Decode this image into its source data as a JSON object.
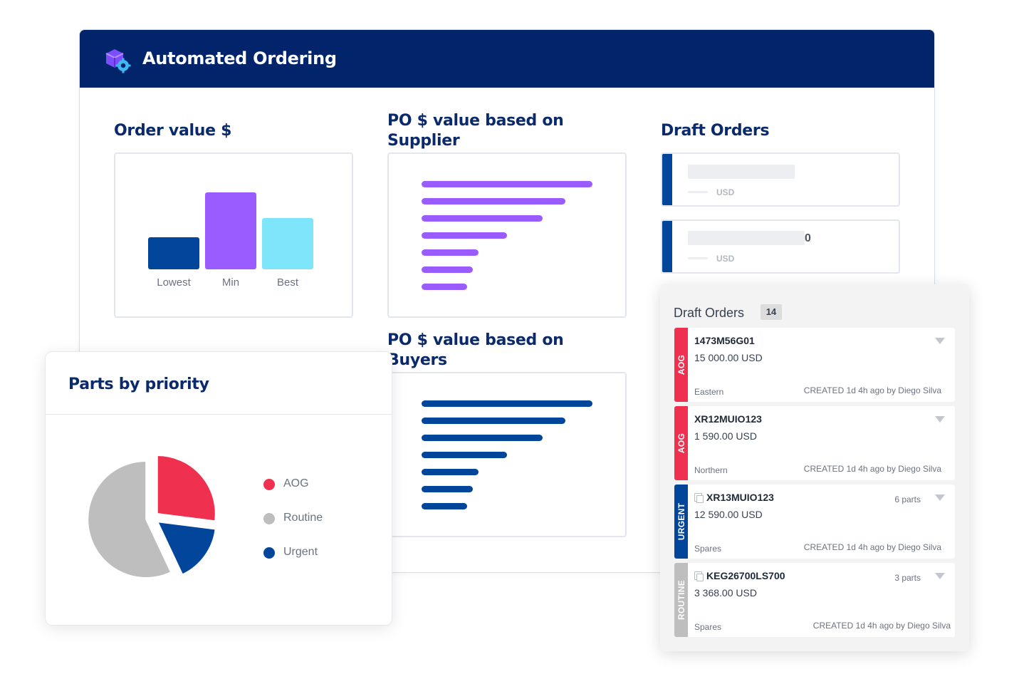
{
  "app": {
    "title": "Automated Ordering"
  },
  "order_value": {
    "title": "Order value $",
    "chart_data": {
      "type": "bar",
      "categories": [
        "Lowest",
        "Min",
        "Best"
      ],
      "values": [
        45,
        108,
        72
      ],
      "colors": [
        "#02469c",
        "#9b5cff",
        "#7fe5fb"
      ]
    }
  },
  "supplier": {
    "title_line1": "PO $ value based on",
    "title_line2": "Supplier",
    "chart_data": {
      "type": "bar",
      "orientation": "horizontal",
      "values": [
        240,
        202,
        170,
        120,
        80,
        72,
        64
      ],
      "color": "#9b5cff"
    }
  },
  "buyers": {
    "title_line1": "PO $ value based on",
    "title_line2": "Buyers",
    "chart_data": {
      "type": "bar",
      "orientation": "horizontal",
      "values": [
        240,
        202,
        170,
        120,
        80,
        72,
        64
      ],
      "color": "#02469c"
    }
  },
  "draft_top": {
    "title": "Draft Orders",
    "currency": "USD",
    "stray_char": "0"
  },
  "parts_by_priority": {
    "title": "Parts by priority",
    "chart_data": {
      "type": "pie",
      "labels": [
        "AOG",
        "Routine",
        "Urgent"
      ],
      "values": [
        27,
        57,
        16
      ],
      "colors": [
        "#f0304f",
        "#bebebe",
        "#02469c"
      ]
    }
  },
  "orders_panel": {
    "title": "Draft Orders",
    "count": "14",
    "orders": [
      {
        "priority": "AOG",
        "color": "#f0304f",
        "id": "1473M56G01",
        "amount": "15 000.00 USD",
        "region": "Eastern",
        "created": "CREATED 1d 4h ago by Diego Silva",
        "parts": "",
        "copy": false,
        "chevron": true
      },
      {
        "priority": "AOG",
        "color": "#f0304f",
        "id": "XR12MUIO123",
        "amount": "1 590.00 USD",
        "region": "Northern",
        "created": "CREATED 1d 4h ago by Diego Silva",
        "parts": "",
        "copy": false,
        "chevron": true
      },
      {
        "priority": "URGENT",
        "color": "#02469c",
        "id": "XR13MUIO123",
        "amount": "12 590.00 USD",
        "region": "Spares",
        "created": "CREATED 1d 4h ago by Diego Silva",
        "parts": "6 parts",
        "copy": true,
        "chevron": true
      },
      {
        "priority": "ROUTINE",
        "color": "#bebebe",
        "id": "KEG26700LS700",
        "amount": "3 368.00 USD",
        "region": "Spares",
        "created": "CREATED 1d 4h ago by Diego Silva",
        "parts": "3 parts",
        "copy": true,
        "chevron": true
      }
    ]
  }
}
